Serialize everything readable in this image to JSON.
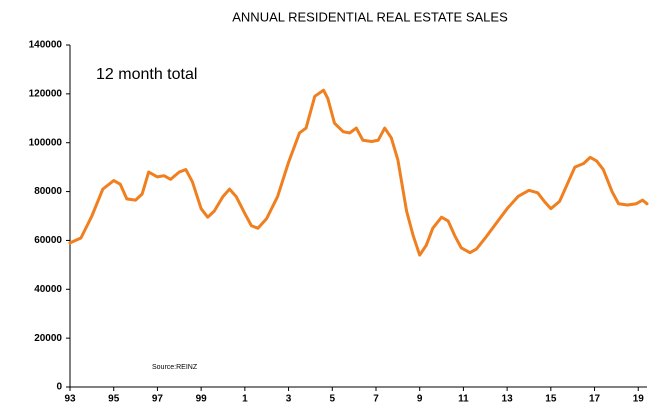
{
  "chart_data": {
    "type": "line",
    "title": "ANNUAL RESIDENTIAL REAL ESTATE SALES",
    "annotations": [
      "12 month total",
      "Source:REINZ"
    ],
    "x": [
      1993.0,
      1993.5,
      1994.0,
      1994.5,
      1995.0,
      1995.3,
      1995.6,
      1996.0,
      1996.3,
      1996.6,
      1997.0,
      1997.3,
      1997.6,
      1998.0,
      1998.3,
      1998.6,
      1999.0,
      1999.3,
      1999.6,
      2000.0,
      2000.3,
      2000.6,
      2001.0,
      2001.3,
      2001.6,
      2002.0,
      2002.5,
      2003.0,
      2003.5,
      2003.8,
      2004.2,
      2004.6,
      2004.8,
      2005.1,
      2005.5,
      2005.8,
      2006.1,
      2006.4,
      2006.8,
      2007.1,
      2007.4,
      2007.7,
      2008.0,
      2008.4,
      2008.7,
      2009.0,
      2009.3,
      2009.6,
      2010.0,
      2010.3,
      2010.6,
      2010.9,
      2011.3,
      2011.6,
      2012.0,
      2012.5,
      2013.0,
      2013.5,
      2014.0,
      2014.4,
      2014.7,
      2015.0,
      2015.4,
      2015.8,
      2016.1,
      2016.5,
      2016.8,
      2017.1,
      2017.4,
      2017.8,
      2018.1,
      2018.5,
      2018.9,
      2019.2,
      2019.4
    ],
    "values": [
      59000,
      61000,
      70000,
      81000,
      84500,
      83000,
      77000,
      76500,
      79000,
      88000,
      86000,
      86500,
      85000,
      88000,
      89000,
      84000,
      73000,
      69500,
      72000,
      78000,
      81000,
      78000,
      71000,
      66000,
      65000,
      69000,
      78000,
      92000,
      104000,
      106000,
      119000,
      121500,
      118000,
      108000,
      104500,
      104000,
      106000,
      101000,
      100500,
      101000,
      106000,
      102000,
      93000,
      72000,
      62000,
      54000,
      58000,
      65000,
      69500,
      68000,
      62000,
      57000,
      55000,
      56500,
      61000,
      67000,
      73000,
      78000,
      80500,
      79500,
      76000,
      73000,
      76000,
      84000,
      90000,
      91500,
      94000,
      92500,
      89000,
      80000,
      75000,
      74500,
      75000,
      76500,
      75000
    ],
    "color": "#f07f1f",
    "xlim": [
      1993,
      2019.4
    ],
    "xticks": [
      {
        "value": 1993,
        "label": "93"
      },
      {
        "value": 1995,
        "label": "95"
      },
      {
        "value": 1997,
        "label": "97"
      },
      {
        "value": 1999,
        "label": "99"
      },
      {
        "value": 2001,
        "label": "1"
      },
      {
        "value": 2003,
        "label": "3"
      },
      {
        "value": 2005,
        "label": "5"
      },
      {
        "value": 2007,
        "label": "7"
      },
      {
        "value": 2009,
        "label": "9"
      },
      {
        "value": 2011,
        "label": "11"
      },
      {
        "value": 2013,
        "label": "13"
      },
      {
        "value": 2015,
        "label": "15"
      },
      {
        "value": 2017,
        "label": "17"
      },
      {
        "value": 2019,
        "label": "19"
      }
    ],
    "ylim": [
      0,
      140000
    ],
    "yticks": [
      0,
      20000,
      40000,
      60000,
      80000,
      100000,
      120000,
      140000
    ],
    "grid": false
  }
}
